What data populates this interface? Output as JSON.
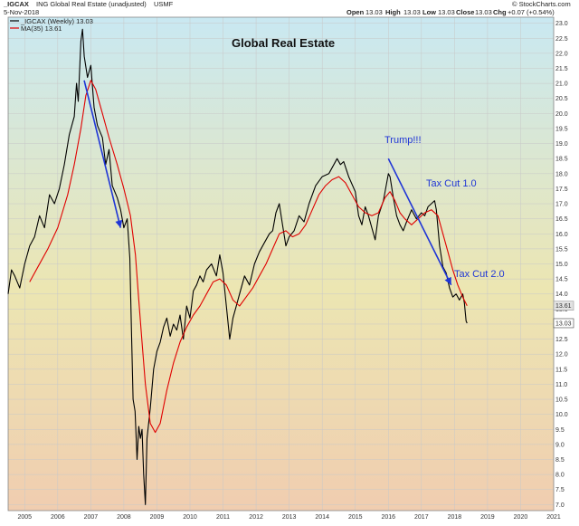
{
  "header": {
    "symbol": "_IGCAX",
    "description": "ING Global Real Estate (unadjusted)",
    "exchange": "USMF",
    "date": "5-Nov-2018",
    "open_label": "Open",
    "open": "13.03",
    "high_label": "High",
    "high": "13.03",
    "low_label": "Low",
    "low": "13.03",
    "close_label": "Close",
    "close": "13.03",
    "chg_label": "Chg",
    "chg": "+0.07 (+0.54%)",
    "brand": "© StockCharts.com",
    "legend_price": "_IGCAX (Weekly) 13.03",
    "legend_ma": "MA(35) 13.61"
  },
  "annotations": {
    "trump": "Trump!!!",
    "tax1": "Tax Cut 1.0",
    "tax2": "Tax Cut 2.0"
  },
  "colors": {
    "price": "#000000",
    "ma": "#e00000",
    "annotation": "#1f35d6",
    "bg_top": "#c9e8f2",
    "bg_mid": "#ece6b2",
    "bg_bottom": "#f0cdb0",
    "ma_badge": "#e2e2e2",
    "last_badge": "#ffffff"
  },
  "chart_data": {
    "type": "line",
    "title": "Global Real Estate",
    "xlabel": "",
    "ylabel": "",
    "ylim": [
      6.8,
      23.2
    ],
    "xlim": [
      2005.0,
      2021.5
    ],
    "yticks": [
      "7.0",
      "7.5",
      "8.0",
      "8.5",
      "9.0",
      "9.5",
      "10.0",
      "10.5",
      "11.0",
      "11.5",
      "12.0",
      "12.5",
      "13.0",
      "13.5",
      "14.0",
      "14.5",
      "15.0",
      "15.5",
      "16.0",
      "16.5",
      "17.0",
      "17.5",
      "18.0",
      "18.5",
      "19.0",
      "19.5",
      "20.0",
      "20.5",
      "21.0",
      "21.5",
      "22.0",
      "22.5",
      "23.0"
    ],
    "xticks": [
      "2005",
      "2006",
      "2007",
      "2008",
      "2009",
      "2010",
      "2011",
      "2012",
      "2013",
      "2014",
      "2015",
      "2016",
      "2017",
      "2018",
      "2019",
      "2020",
      "2021"
    ],
    "grid": true,
    "last_values": {
      "ma": 13.61,
      "price": 13.03
    },
    "series": [
      {
        "name": "_IGCAX (Weekly) 13.03",
        "points": [
          [
            2005.0,
            14.0
          ],
          [
            2005.1,
            14.8
          ],
          [
            2005.2,
            14.6
          ],
          [
            2005.35,
            14.2
          ],
          [
            2005.5,
            15.0
          ],
          [
            2005.65,
            15.6
          ],
          [
            2005.8,
            15.9
          ],
          [
            2005.95,
            16.6
          ],
          [
            2006.1,
            16.2
          ],
          [
            2006.25,
            17.3
          ],
          [
            2006.4,
            17.0
          ],
          [
            2006.55,
            17.5
          ],
          [
            2006.7,
            18.3
          ],
          [
            2006.85,
            19.3
          ],
          [
            2007.0,
            19.9
          ],
          [
            2007.07,
            21.0
          ],
          [
            2007.12,
            20.4
          ],
          [
            2007.2,
            22.4
          ],
          [
            2007.25,
            22.8
          ],
          [
            2007.3,
            21.9
          ],
          [
            2007.4,
            21.2
          ],
          [
            2007.5,
            21.6
          ],
          [
            2007.6,
            20.2
          ],
          [
            2007.7,
            19.6
          ],
          [
            2007.85,
            19.2
          ],
          [
            2007.95,
            18.3
          ],
          [
            2008.05,
            18.8
          ],
          [
            2008.15,
            17.6
          ],
          [
            2008.3,
            17.2
          ],
          [
            2008.4,
            16.8
          ],
          [
            2008.5,
            16.2
          ],
          [
            2008.6,
            16.5
          ],
          [
            2008.68,
            15.2
          ],
          [
            2008.73,
            12.8
          ],
          [
            2008.78,
            10.5
          ],
          [
            2008.84,
            10.1
          ],
          [
            2008.9,
            8.5
          ],
          [
            2008.95,
            9.6
          ],
          [
            2009.0,
            9.2
          ],
          [
            2009.05,
            9.5
          ],
          [
            2009.1,
            8.0
          ],
          [
            2009.15,
            7.0
          ],
          [
            2009.2,
            9.2
          ],
          [
            2009.3,
            10.2
          ],
          [
            2009.4,
            11.5
          ],
          [
            2009.5,
            12.1
          ],
          [
            2009.6,
            12.4
          ],
          [
            2009.7,
            12.9
          ],
          [
            2009.8,
            13.2
          ],
          [
            2009.9,
            12.6
          ],
          [
            2010.0,
            13.0
          ],
          [
            2010.1,
            12.8
          ],
          [
            2010.2,
            13.3
          ],
          [
            2010.3,
            12.5
          ],
          [
            2010.4,
            13.6
          ],
          [
            2010.5,
            13.2
          ],
          [
            2010.6,
            14.1
          ],
          [
            2010.7,
            14.3
          ],
          [
            2010.8,
            14.6
          ],
          [
            2010.9,
            14.4
          ],
          [
            2011.0,
            14.8
          ],
          [
            2011.15,
            15.0
          ],
          [
            2011.3,
            14.6
          ],
          [
            2011.4,
            15.3
          ],
          [
            2011.5,
            14.7
          ],
          [
            2011.6,
            13.6
          ],
          [
            2011.7,
            12.5
          ],
          [
            2011.8,
            13.2
          ],
          [
            2011.9,
            13.6
          ],
          [
            2012.0,
            14.0
          ],
          [
            2012.15,
            14.6
          ],
          [
            2012.3,
            14.3
          ],
          [
            2012.45,
            15.0
          ],
          [
            2012.6,
            15.4
          ],
          [
            2012.75,
            15.7
          ],
          [
            2012.9,
            16.0
          ],
          [
            2013.0,
            16.1
          ],
          [
            2013.1,
            16.7
          ],
          [
            2013.2,
            17.0
          ],
          [
            2013.3,
            16.3
          ],
          [
            2013.4,
            15.6
          ],
          [
            2013.5,
            15.9
          ],
          [
            2013.65,
            16.1
          ],
          [
            2013.8,
            16.6
          ],
          [
            2013.95,
            16.4
          ],
          [
            2014.1,
            17.0
          ],
          [
            2014.3,
            17.6
          ],
          [
            2014.5,
            17.9
          ],
          [
            2014.7,
            18.0
          ],
          [
            2014.85,
            18.3
          ],
          [
            2014.95,
            18.5
          ],
          [
            2015.05,
            18.3
          ],
          [
            2015.15,
            18.4
          ],
          [
            2015.3,
            17.9
          ],
          [
            2015.5,
            17.4
          ],
          [
            2015.6,
            16.6
          ],
          [
            2015.7,
            16.3
          ],
          [
            2015.8,
            16.9
          ],
          [
            2015.9,
            16.6
          ],
          [
            2016.0,
            16.2
          ],
          [
            2016.1,
            15.8
          ],
          [
            2016.2,
            16.6
          ],
          [
            2016.35,
            17.1
          ],
          [
            2016.5,
            18.0
          ],
          [
            2016.55,
            17.9
          ],
          [
            2016.65,
            17.2
          ],
          [
            2016.75,
            16.6
          ],
          [
            2016.85,
            16.3
          ],
          [
            2016.95,
            16.1
          ],
          [
            2017.05,
            16.4
          ],
          [
            2017.2,
            16.8
          ],
          [
            2017.35,
            16.5
          ],
          [
            2017.5,
            16.7
          ],
          [
            2017.6,
            16.6
          ],
          [
            2017.7,
            16.9
          ],
          [
            2017.8,
            17.0
          ],
          [
            2017.9,
            17.1
          ],
          [
            2017.95,
            16.8
          ],
          [
            2018.05,
            15.6
          ],
          [
            2018.15,
            14.9
          ],
          [
            2018.25,
            14.7
          ],
          [
            2018.35,
            14.2
          ],
          [
            2018.45,
            13.9
          ],
          [
            2018.55,
            14.0
          ],
          [
            2018.65,
            13.8
          ],
          [
            2018.75,
            14.0
          ],
          [
            2018.8,
            13.7
          ],
          [
            2018.85,
            13.1
          ],
          [
            2018.88,
            13.03
          ]
        ]
      },
      {
        "name": "MA(35) 13.61",
        "points": [
          [
            2005.65,
            14.4
          ],
          [
            2005.9,
            14.9
          ],
          [
            2006.2,
            15.5
          ],
          [
            2006.5,
            16.2
          ],
          [
            2006.8,
            17.3
          ],
          [
            2007.0,
            18.3
          ],
          [
            2007.2,
            19.5
          ],
          [
            2007.35,
            20.6
          ],
          [
            2007.5,
            21.1
          ],
          [
            2007.65,
            20.8
          ],
          [
            2007.85,
            20.0
          ],
          [
            2008.05,
            19.2
          ],
          [
            2008.3,
            18.3
          ],
          [
            2008.5,
            17.5
          ],
          [
            2008.7,
            16.6
          ],
          [
            2008.85,
            15.3
          ],
          [
            2008.95,
            13.8
          ],
          [
            2009.05,
            12.4
          ],
          [
            2009.15,
            11.0
          ],
          [
            2009.3,
            9.7
          ],
          [
            2009.45,
            9.4
          ],
          [
            2009.6,
            9.7
          ],
          [
            2009.8,
            10.8
          ],
          [
            2010.0,
            11.7
          ],
          [
            2010.2,
            12.4
          ],
          [
            2010.4,
            12.9
          ],
          [
            2010.6,
            13.3
          ],
          [
            2010.8,
            13.6
          ],
          [
            2011.0,
            14.0
          ],
          [
            2011.2,
            14.4
          ],
          [
            2011.4,
            14.5
          ],
          [
            2011.6,
            14.3
          ],
          [
            2011.8,
            13.8
          ],
          [
            2012.0,
            13.6
          ],
          [
            2012.2,
            13.9
          ],
          [
            2012.4,
            14.2
          ],
          [
            2012.6,
            14.6
          ],
          [
            2012.8,
            15.0
          ],
          [
            2013.0,
            15.5
          ],
          [
            2013.2,
            16.0
          ],
          [
            2013.4,
            16.1
          ],
          [
            2013.6,
            15.9
          ],
          [
            2013.8,
            16.0
          ],
          [
            2014.0,
            16.3
          ],
          [
            2014.2,
            16.8
          ],
          [
            2014.4,
            17.3
          ],
          [
            2014.6,
            17.6
          ],
          [
            2014.8,
            17.8
          ],
          [
            2015.0,
            17.9
          ],
          [
            2015.2,
            17.7
          ],
          [
            2015.4,
            17.3
          ],
          [
            2015.6,
            16.9
          ],
          [
            2015.8,
            16.7
          ],
          [
            2016.0,
            16.6
          ],
          [
            2016.2,
            16.7
          ],
          [
            2016.4,
            17.2
          ],
          [
            2016.55,
            17.4
          ],
          [
            2016.7,
            17.1
          ],
          [
            2016.85,
            16.7
          ],
          [
            2017.0,
            16.5
          ],
          [
            2017.2,
            16.3
          ],
          [
            2017.4,
            16.5
          ],
          [
            2017.6,
            16.7
          ],
          [
            2017.8,
            16.8
          ],
          [
            2018.0,
            16.6
          ],
          [
            2018.15,
            16.0
          ],
          [
            2018.3,
            15.4
          ],
          [
            2018.45,
            14.8
          ],
          [
            2018.6,
            14.3
          ],
          [
            2018.75,
            13.9
          ],
          [
            2018.88,
            13.61
          ]
        ]
      }
    ],
    "arrows": [
      {
        "from": [
          2007.3,
          21.1
        ],
        "to": [
          2008.4,
          16.2
        ]
      },
      {
        "from": [
          2016.5,
          18.5
        ],
        "to": [
          2018.4,
          14.3
        ]
      }
    ]
  }
}
